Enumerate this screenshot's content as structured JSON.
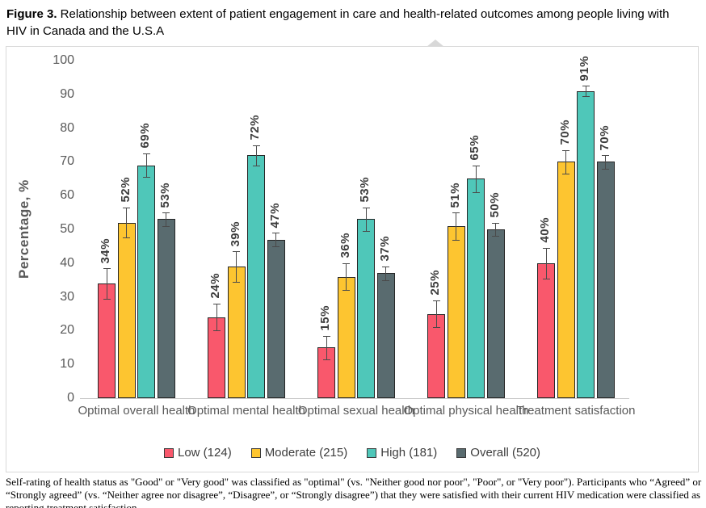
{
  "title": {
    "prefix": "Figure 3.",
    "rest": " Relationship between extent of patient engagement in care and health-related outcomes among people living with HIV in Canada and the U.S.A"
  },
  "chart_data": {
    "type": "bar",
    "title": "",
    "xlabel": "",
    "ylabel": "Percentage, %",
    "ylim": [
      0,
      100
    ],
    "ytick_step": 10,
    "grid": false,
    "legend_position": "bottom",
    "value_label_suffix": "%",
    "categories": [
      "Optimal overall health",
      "Optimal mental health",
      "Optimal sexual health",
      "Optimal physical health",
      "Treatment satisfaction"
    ],
    "series": [
      {
        "name": "Low (124)",
        "color": "#F9586C",
        "values": [
          34,
          24,
          15,
          25,
          40
        ],
        "errors": [
          4.5,
          4.0,
          3.5,
          4.0,
          4.5
        ]
      },
      {
        "name": "Moderate (215)",
        "color": "#FDC530",
        "values": [
          52,
          39,
          36,
          51,
          70
        ],
        "errors": [
          4.5,
          4.5,
          4.0,
          4.0,
          3.5
        ]
      },
      {
        "name": "High (181)",
        "color": "#4FC7B9",
        "values": [
          69,
          72,
          53,
          65,
          91
        ],
        "errors": [
          3.5,
          3.0,
          3.5,
          4.0,
          1.5
        ]
      },
      {
        "name": "Overall (520)",
        "color": "#596B6F",
        "values": [
          53,
          47,
          37,
          50,
          70
        ],
        "errors": [
          2.0,
          2.0,
          2.0,
          2.0,
          2.0
        ]
      }
    ],
    "colors": {
      "bar_border": "#262626",
      "error_bar": "#4a4a4a",
      "axis_text": "#595959",
      "value_label": "#3d3d3d",
      "baseline": "#c9c9c9",
      "chart_border": "#d9d9d9"
    }
  },
  "footnote": "Self-rating of health status as \"Good\" or \"Very good\" was classified as \"optimal\" (vs. \"Neither good nor poor\", \"Poor\", or \"Very poor\"). Participants who “Agreed” or “Strongly agreed” (vs. “Neither agree nor disagree”, “Disagree”, or “Strongly disagree”) that they were satisfied with their current HIV medication were classified as reporting treatment satisfaction."
}
